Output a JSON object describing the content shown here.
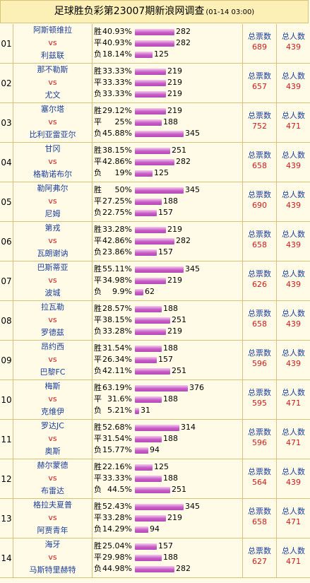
{
  "header": {
    "title": "足球胜负彩第23007期新浪网调查",
    "date": "(01-14 03:00)"
  },
  "labels": {
    "win": "胜",
    "draw": "平",
    "lose": "负",
    "total_votes": "总票数",
    "total_people": "总人数"
  },
  "matches": [
    {
      "num": "01",
      "home": "阿斯顿维拉",
      "vs": "vs",
      "away": "利兹联",
      "win_pct": "40.93%",
      "win": 282,
      "draw_pct": "40.93%",
      "draw": 282,
      "lose_pct": "18.14%",
      "lose": 125,
      "total": "689",
      "people": "439"
    },
    {
      "num": "02",
      "home": "那不勒斯",
      "vs": "vs",
      "away": "尤文",
      "win_pct": "33.33%",
      "win": 219,
      "draw_pct": "33.33%",
      "draw": 219,
      "lose_pct": "33.33%",
      "lose": 219,
      "total": "657",
      "people": "439"
    },
    {
      "num": "03",
      "home": "塞尔塔",
      "vs": "vs",
      "away": "比利亚雷亚尔",
      "win_pct": "29.12%",
      "win": 219,
      "draw_pct": "25%",
      "draw": 188,
      "lose_pct": "45.88%",
      "lose": 345,
      "total": "752",
      "people": "471"
    },
    {
      "num": "04",
      "home": "甘冈",
      "vs": "vs",
      "away": "格勒诺布尔",
      "win_pct": "38.15%",
      "win": 251,
      "draw_pct": "42.86%",
      "draw": 282,
      "lose_pct": "19%",
      "lose": 125,
      "total": "658",
      "people": "439"
    },
    {
      "num": "05",
      "home": "勒阿弗尔",
      "vs": "vs",
      "away": "尼姆",
      "win_pct": "50%",
      "win": 345,
      "draw_pct": "27.25%",
      "draw": 188,
      "lose_pct": "22.75%",
      "lose": 157,
      "total": "690",
      "people": "439"
    },
    {
      "num": "06",
      "home": "第戎",
      "vs": "vs",
      "away": "瓦朗谢讷",
      "win_pct": "33.28%",
      "win": 219,
      "draw_pct": "42.86%",
      "draw": 282,
      "lose_pct": "23.86%",
      "lose": 157,
      "total": "658",
      "people": "439"
    },
    {
      "num": "07",
      "home": "巴斯蒂亚",
      "vs": "vs",
      "away": "波城",
      "win_pct": "55.11%",
      "win": 345,
      "draw_pct": "34.98%",
      "draw": 219,
      "lose_pct": "9.9%",
      "lose": 62,
      "total": "626",
      "people": "439"
    },
    {
      "num": "08",
      "home": "拉瓦勒",
      "vs": "vs",
      "away": "罗德兹",
      "win_pct": "28.57%",
      "win": 188,
      "draw_pct": "38.15%",
      "draw": 251,
      "lose_pct": "33.28%",
      "lose": 219,
      "total": "658",
      "people": "439"
    },
    {
      "num": "09",
      "home": "昂约西",
      "vs": "vs",
      "away": "巴黎FC",
      "win_pct": "31.54%",
      "win": 188,
      "draw_pct": "26.34%",
      "draw": 157,
      "lose_pct": "42.11%",
      "lose": 251,
      "total": "596",
      "people": "439"
    },
    {
      "num": "10",
      "home": "梅斯",
      "vs": "vs",
      "away": "克维伊",
      "win_pct": "63.19%",
      "win": 376,
      "draw_pct": "31.6%",
      "draw": 188,
      "lose_pct": "5.21%",
      "lose": 31,
      "total": "595",
      "people": "471"
    },
    {
      "num": "11",
      "home": "罗达JC",
      "vs": "vs",
      "away": "奥斯",
      "win_pct": "52.68%",
      "win": 314,
      "draw_pct": "31.54%",
      "draw": 188,
      "lose_pct": "15.77%",
      "lose": 94,
      "total": "596",
      "people": "471"
    },
    {
      "num": "12",
      "home": "赫尔蒙德",
      "vs": "vs",
      "away": "布雷达",
      "win_pct": "22.16%",
      "win": 125,
      "draw_pct": "33.33%",
      "draw": 188,
      "lose_pct": "44.5%",
      "lose": 251,
      "total": "564",
      "people": "439"
    },
    {
      "num": "13",
      "home": "格拉夫夏普",
      "vs": "vs",
      "away": "阿贾青年",
      "win_pct": "52.43%",
      "win": 345,
      "draw_pct": "33.28%",
      "draw": 219,
      "lose_pct": "14.29%",
      "lose": 94,
      "total": "658",
      "people": "471"
    },
    {
      "num": "14",
      "home": "海牙",
      "vs": "vs",
      "away": "马斯特里赫特",
      "win_pct": "25.04%",
      "win": 157,
      "draw_pct": "29.98%",
      "draw": 188,
      "lose_pct": "44.98%",
      "lose": 282,
      "total": "627",
      "people": "471"
    }
  ]
}
